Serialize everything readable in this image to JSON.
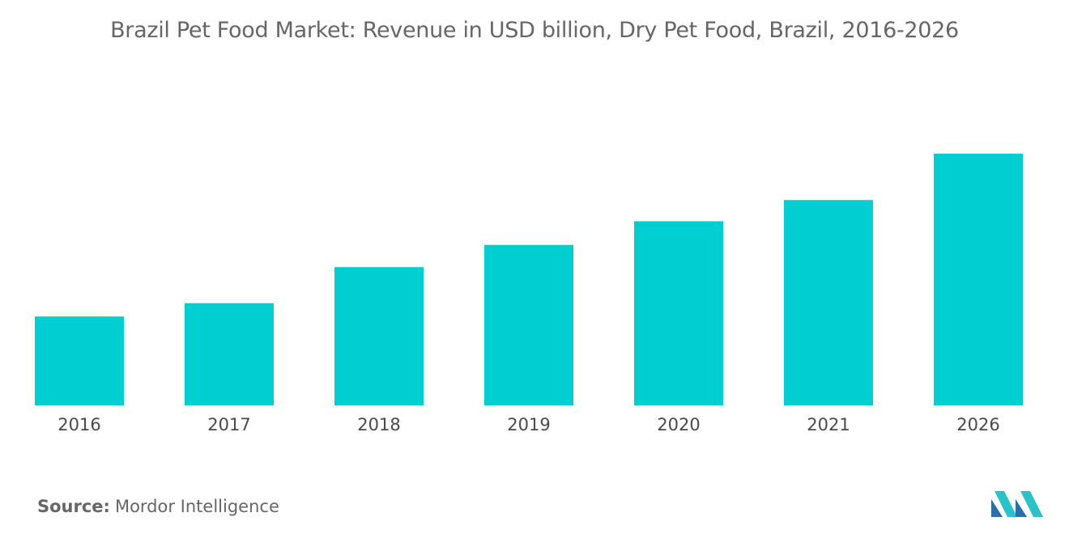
{
  "chart_data": {
    "type": "bar",
    "title": "Brazil Pet Food Market: Revenue in USD billion, Dry Pet Food, Brazil, 2016-2026",
    "categories": [
      "2016",
      "2017",
      "2018",
      "2019",
      "2020",
      "2021",
      "2026"
    ],
    "values": [
      1.8,
      2.07,
      2.8,
      3.25,
      3.73,
      4.16,
      5.1
    ],
    "xlabel": "",
    "ylabel": "",
    "ylim": [
      0,
      8
    ],
    "grid": false,
    "legend": "none",
    "bar_color": "#00cfd1"
  },
  "source": {
    "label": "Source:",
    "text": "Mordor Intelligence"
  },
  "logo": {
    "icon": "mordor-intelligence-logo-icon",
    "colors": [
      "#2a6fa8",
      "#29c3c9"
    ]
  }
}
